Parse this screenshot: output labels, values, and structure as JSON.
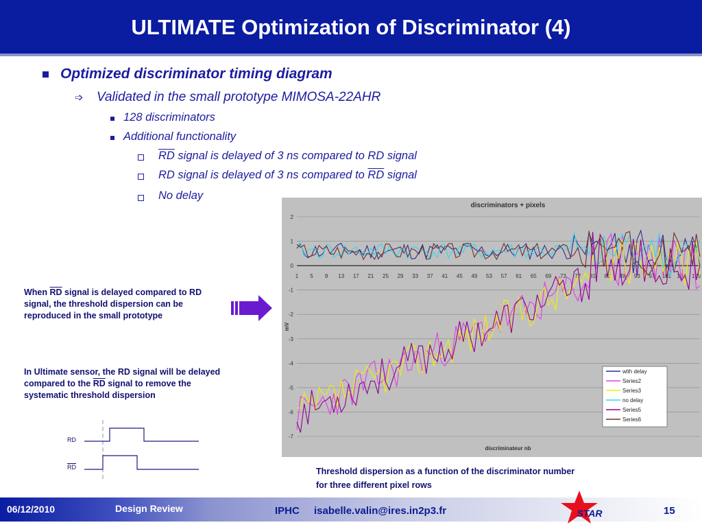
{
  "title": "ULTIMATE Optimization of Discriminator (4)",
  "bullets": {
    "l1": "Optimized discriminator timing diagram",
    "l2": "Validated in the small prototype MIMOSA-22AHR",
    "l3a": "128 discriminators",
    "l3b": "Additional functionality",
    "l4a_rd": "RD",
    "l4a_text": " signal is delayed of 3 ns compared to RD signal",
    "l4b_text": "RD signal is delayed of 3 ns compared to ",
    "l4b_rd": "RD",
    "l4b_end": " signal",
    "l4c": "No delay"
  },
  "notes": {
    "note1_l1a": "When ",
    "note1_l1rd": "RD",
    "note1_l1b": " signal is delayed compared to RD",
    "note1_l2": "signal, the threshold dispersion can be",
    "note1_l3": "reproduced in the small prototype",
    "note2_l1": "In Ultimate sensor, the RD signal will be delayed",
    "note2_l2a": "compared to the ",
    "note2_l2rd": "RD",
    "note2_l2b": " signal to remove the",
    "note2_l3": "systematic threshold dispersion"
  },
  "timing": {
    "rd_label": "RD",
    "rdbar_label": "RD"
  },
  "caption": {
    "line1": "Threshold dispersion as a function of the discriminator number",
    "line2": "for three different pixel rows"
  },
  "footer": {
    "date": "06/12/2010",
    "section": "Design Review",
    "org": "IPHC",
    "email": "isabelle.valin@ires.in2p3.fr",
    "page": "15",
    "logo_text": "STAR"
  },
  "colors": {
    "title_bg": "#0a1ca0",
    "text": "#1c1ca0",
    "arrow": "#6a1bd0",
    "chart_bg": "#c0c0c0",
    "logo_red": "#e8101c"
  },
  "chart_data": {
    "type": "line",
    "title": "discriminators + pixels",
    "xlabel": "discriminateur nb",
    "ylabel": "mV",
    "ylim": [
      -7,
      2
    ],
    "yticks": [
      "2",
      "1",
      "0",
      "-1",
      "-2",
      "-3",
      "-4",
      "-5",
      "-6",
      "-7"
    ],
    "xticks": [
      "1",
      "5",
      "9",
      "13",
      "17",
      "21",
      "25",
      "29",
      "33",
      "37",
      "41",
      "45",
      "49",
      "53",
      "57",
      "61",
      "65",
      "69",
      "73",
      "77",
      "81",
      "85",
      "89",
      "93",
      "97",
      "101",
      "105",
      "109"
    ],
    "x_range": [
      1,
      110
    ],
    "grid": "horizontal",
    "legend_position": "bottom-right",
    "series": [
      {
        "name": "with delay",
        "color": "#2d2d8c",
        "group": "flat",
        "seed": 11
      },
      {
        "name": "Series2",
        "color": "#e040e0",
        "group": "ramp",
        "seed": 23
      },
      {
        "name": "Series3",
        "color": "#f0f000",
        "group": "ramp",
        "seed": 37
      },
      {
        "name": "no delay",
        "color": "#30d8f0",
        "group": "flat",
        "seed": 41
      },
      {
        "name": "Series5",
        "color": "#900090",
        "group": "ramp",
        "seed": 53
      },
      {
        "name": "Series6",
        "color": "#703030",
        "group": "flat",
        "seed": 67
      }
    ]
  }
}
